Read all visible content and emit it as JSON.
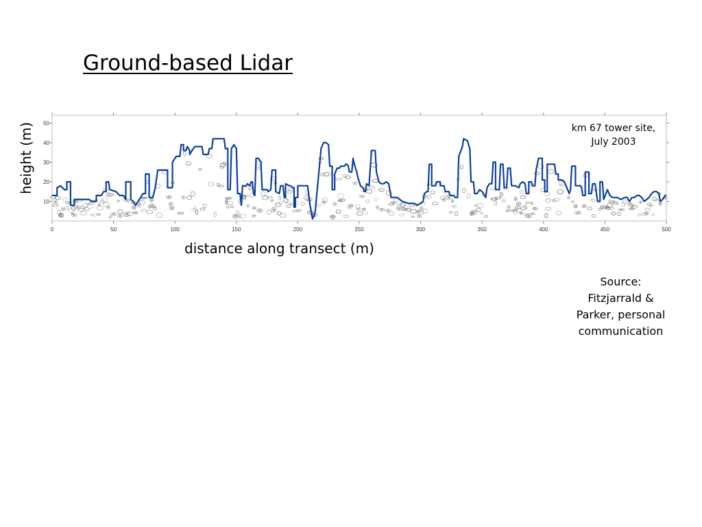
{
  "slide": {
    "title": "Ground-based Lidar",
    "site_note": [
      "km 67 tower site,",
      "July 2003"
    ],
    "source": [
      "Source:",
      "Fitzjarrald &",
      "Parker, personal",
      "communication"
    ]
  },
  "chart_data": {
    "type": "line",
    "title": "",
    "xlabel": "distance along transect (m)",
    "ylabel": "height (m)",
    "xlim": [
      0,
      500
    ],
    "ylim": [
      0,
      54
    ],
    "xticks": [
      0,
      50,
      100,
      150,
      200,
      250,
      300,
      350,
      400,
      450,
      500
    ],
    "yticks": [
      10,
      20,
      30,
      40,
      50
    ],
    "grid": false,
    "legend": "none",
    "series": [
      {
        "color": "#0b3f9c",
        "points": [
          [
            0,
            13
          ],
          [
            4,
            13
          ],
          [
            4,
            17
          ],
          [
            7,
            18
          ],
          [
            10,
            16
          ],
          [
            12,
            16
          ],
          [
            12,
            20
          ],
          [
            15,
            20
          ],
          [
            15,
            8
          ],
          [
            18,
            8
          ],
          [
            18,
            11
          ],
          [
            30,
            11
          ],
          [
            32,
            10
          ],
          [
            36,
            10
          ],
          [
            36,
            13
          ],
          [
            40,
            13
          ],
          [
            42,
            15
          ],
          [
            44,
            15
          ],
          [
            44,
            20
          ],
          [
            46,
            20
          ],
          [
            47,
            16
          ],
          [
            52,
            15
          ],
          [
            55,
            13
          ],
          [
            58,
            13
          ],
          [
            60,
            11
          ],
          [
            60,
            20
          ],
          [
            64,
            20
          ],
          [
            64,
            11
          ],
          [
            66,
            10
          ],
          [
            68,
            8
          ],
          [
            72,
            12
          ],
          [
            74,
            14
          ],
          [
            76,
            14
          ],
          [
            76,
            24
          ],
          [
            79,
            24
          ],
          [
            79,
            12
          ],
          [
            82,
            12
          ],
          [
            84,
            17
          ],
          [
            86,
            26
          ],
          [
            94,
            26
          ],
          [
            94,
            17
          ],
          [
            98,
            17
          ],
          [
            98,
            30
          ],
          [
            101,
            33
          ],
          [
            104,
            33
          ],
          [
            105,
            39
          ],
          [
            107,
            39
          ],
          [
            107,
            36
          ],
          [
            109,
            36
          ],
          [
            110,
            38
          ],
          [
            112,
            36
          ],
          [
            112,
            34
          ],
          [
            116,
            38
          ],
          [
            122,
            38
          ],
          [
            123,
            34
          ],
          [
            127,
            34
          ],
          [
            128,
            37
          ],
          [
            130,
            37
          ],
          [
            131,
            42
          ],
          [
            140,
            42
          ],
          [
            141,
            37
          ],
          [
            143,
            37
          ],
          [
            143,
            16
          ],
          [
            145,
            16
          ],
          [
            146,
            37
          ],
          [
            148,
            39
          ],
          [
            150,
            37
          ],
          [
            151,
            14
          ],
          [
            153,
            14
          ],
          [
            154,
            8
          ],
          [
            155,
            18
          ],
          [
            158,
            18
          ],
          [
            159,
            19
          ],
          [
            161,
            18
          ],
          [
            162,
            20
          ],
          [
            163,
            20
          ],
          [
            164,
            14
          ],
          [
            165,
            13
          ],
          [
            166,
            32
          ],
          [
            168,
            32
          ],
          [
            170,
            30
          ],
          [
            171,
            16
          ],
          [
            175,
            16
          ],
          [
            176,
            15
          ],
          [
            178,
            16
          ],
          [
            179,
            26
          ],
          [
            182,
            26
          ],
          [
            182,
            15
          ],
          [
            185,
            14
          ],
          [
            186,
            18
          ],
          [
            188,
            18
          ],
          [
            189,
            12
          ],
          [
            190,
            12
          ],
          [
            190,
            19
          ],
          [
            193,
            18
          ],
          [
            194,
            18
          ],
          [
            196,
            17
          ],
          [
            197,
            17
          ],
          [
            197,
            7
          ],
          [
            198,
            7
          ],
          [
            198,
            12
          ],
          [
            200,
            12
          ],
          [
            200,
            18
          ],
          [
            208,
            18
          ],
          [
            210,
            8
          ],
          [
            212,
            1
          ],
          [
            214,
            4
          ],
          [
            219,
            37
          ],
          [
            221,
            40
          ],
          [
            223,
            40
          ],
          [
            225,
            39
          ],
          [
            226,
            28
          ],
          [
            228,
            28
          ],
          [
            228,
            16
          ],
          [
            230,
            16
          ],
          [
            230,
            24
          ],
          [
            232,
            27
          ],
          [
            234,
            27
          ],
          [
            235,
            28
          ],
          [
            238,
            28
          ],
          [
            239,
            29
          ],
          [
            240,
            29
          ],
          [
            241,
            28
          ],
          [
            242,
            25
          ],
          [
            244,
            25
          ],
          [
            245,
            32
          ],
          [
            246,
            29
          ],
          [
            248,
            25
          ],
          [
            249,
            22
          ],
          [
            251,
            18
          ],
          [
            253,
            17
          ],
          [
            254,
            15
          ],
          [
            255,
            15
          ],
          [
            256,
            19
          ],
          [
            258,
            18
          ],
          [
            260,
            36
          ],
          [
            263,
            36
          ],
          [
            264,
            25
          ],
          [
            266,
            20
          ],
          [
            268,
            19
          ],
          [
            270,
            19
          ],
          [
            272,
            20
          ],
          [
            274,
            19
          ],
          [
            276,
            12
          ],
          [
            281,
            12
          ],
          [
            283,
            11
          ],
          [
            285,
            10
          ],
          [
            290,
            9
          ],
          [
            295,
            9
          ],
          [
            297,
            8
          ],
          [
            300,
            9
          ],
          [
            302,
            10
          ],
          [
            303,
            14
          ],
          [
            305,
            15
          ],
          [
            306,
            15
          ],
          [
            307,
            29
          ],
          [
            309,
            29
          ],
          [
            309,
            18
          ],
          [
            312,
            18
          ],
          [
            313,
            20
          ],
          [
            316,
            20
          ],
          [
            316,
            18
          ],
          [
            319,
            18
          ],
          [
            320,
            15
          ],
          [
            323,
            15
          ],
          [
            324,
            13
          ],
          [
            327,
            13
          ],
          [
            328,
            12
          ],
          [
            330,
            12
          ],
          [
            331,
            33
          ],
          [
            334,
            38
          ],
          [
            335,
            42
          ],
          [
            338,
            41
          ],
          [
            340,
            37
          ],
          [
            341,
            20
          ],
          [
            343,
            20
          ],
          [
            344,
            14
          ],
          [
            346,
            14
          ],
          [
            348,
            16
          ],
          [
            350,
            15
          ],
          [
            353,
            12
          ],
          [
            354,
            17
          ],
          [
            356,
            19
          ],
          [
            358,
            19
          ],
          [
            359,
            30
          ],
          [
            361,
            30
          ],
          [
            361,
            16
          ],
          [
            364,
            16
          ],
          [
            365,
            29
          ],
          [
            367,
            29
          ],
          [
            368,
            17
          ],
          [
            370,
            17
          ],
          [
            371,
            27
          ],
          [
            373,
            27
          ],
          [
            374,
            18
          ],
          [
            376,
            18
          ],
          [
            377,
            18
          ],
          [
            380,
            17
          ],
          [
            381,
            19
          ],
          [
            383,
            20
          ],
          [
            385,
            19
          ],
          [
            386,
            14
          ],
          [
            388,
            14
          ],
          [
            388,
            20
          ],
          [
            390,
            20
          ],
          [
            391,
            18
          ],
          [
            393,
            18
          ],
          [
            394,
            26
          ],
          [
            396,
            32
          ],
          [
            399,
            32
          ],
          [
            399,
            21
          ],
          [
            401,
            21
          ],
          [
            401,
            15
          ],
          [
            403,
            15
          ],
          [
            403,
            29
          ],
          [
            409,
            29
          ],
          [
            410,
            24
          ],
          [
            412,
            24
          ],
          [
            412,
            21
          ],
          [
            415,
            21
          ],
          [
            417,
            20
          ],
          [
            419,
            17
          ],
          [
            421,
            14
          ],
          [
            422,
            16
          ],
          [
            423,
            28
          ],
          [
            426,
            28
          ],
          [
            426,
            18
          ],
          [
            428,
            18
          ],
          [
            430,
            18
          ],
          [
            431,
            17
          ],
          [
            432,
            13
          ],
          [
            434,
            13
          ],
          [
            434,
            25
          ],
          [
            437,
            25
          ],
          [
            437,
            14
          ],
          [
            439,
            14
          ],
          [
            440,
            19
          ],
          [
            442,
            19
          ],
          [
            444,
            10
          ],
          [
            446,
            10
          ],
          [
            446,
            20
          ],
          [
            448,
            20
          ],
          [
            449,
            11
          ],
          [
            452,
            16
          ],
          [
            454,
            13
          ],
          [
            456,
            12
          ],
          [
            460,
            12
          ],
          [
            463,
            11
          ],
          [
            466,
            12
          ],
          [
            468,
            12
          ],
          [
            470,
            10
          ],
          [
            472,
            12
          ],
          [
            474,
            12
          ],
          [
            476,
            13
          ],
          [
            478,
            13
          ],
          [
            480,
            12
          ],
          [
            482,
            10
          ],
          [
            484,
            11
          ],
          [
            486,
            12
          ],
          [
            488,
            14
          ],
          [
            490,
            15
          ],
          [
            492,
            15
          ],
          [
            494,
            14
          ],
          [
            495,
            10
          ],
          [
            497,
            11
          ],
          [
            499,
            13
          ],
          [
            500,
            13
          ]
        ]
      }
    ]
  }
}
